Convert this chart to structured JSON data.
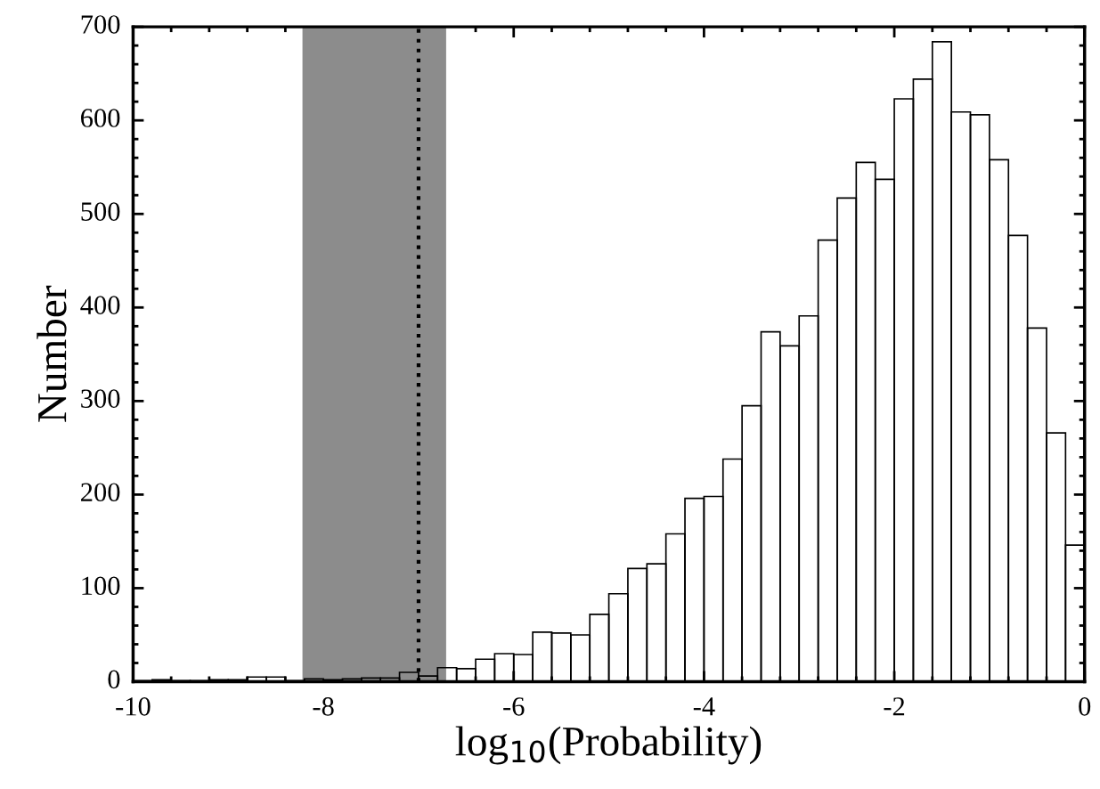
{
  "chart_data": {
    "type": "histogram",
    "xlabel": "log$_{10}$(Probability)",
    "ylabel": "Number",
    "bins": [
      -10,
      -9.8,
      -9.6,
      -9.4,
      -9.2,
      -9,
      -8.8,
      -8.6,
      -8.4,
      -8.2,
      -8,
      -7.8,
      -7.6,
      -7.4,
      -7.2,
      -7,
      -6.8,
      -6.6,
      -6.4,
      -6.2,
      -6,
      -5.8,
      -5.6,
      -5.4,
      -5.2,
      -5,
      -4.8,
      -4.6,
      -4.4,
      -4.2,
      -4,
      -3.8,
      -3.6,
      -3.4,
      -3.2,
      -3,
      -2.8,
      -2.6,
      -2.4,
      -2.2,
      -2,
      -1.8,
      -1.6,
      -1.4,
      -1.2,
      -1,
      -0.8,
      -0.6,
      -0.4,
      -0.2,
      0
    ],
    "values": [
      1,
      2,
      1,
      1,
      2,
      2,
      5,
      5,
      1,
      3,
      2,
      3,
      4,
      4,
      10,
      6,
      15,
      14,
      24,
      30,
      29,
      53,
      52,
      50,
      72,
      94,
      121,
      126,
      158,
      196,
      198,
      238,
      295,
      374,
      359,
      391,
      472,
      517,
      555,
      537,
      623,
      644,
      684,
      609,
      606,
      558,
      477,
      378,
      266,
      146
    ],
    "color": "#000000",
    "xlim": [
      -10,
      0
    ],
    "xticks": [
      -10,
      -8,
      -6,
      -4,
      -2,
      0
    ],
    "ylim": [
      0,
      700
    ],
    "yticks": [
      0,
      100,
      200,
      300,
      400,
      500,
      600,
      700
    ],
    "bands": [
      {
        "axis": "x",
        "from": -8.22,
        "to": -6.71,
        "color": "#8c8c8c"
      }
    ],
    "ref_lines": [
      {
        "axis": "x",
        "value": -7.0,
        "color": "#000000",
        "line_style": "dotted"
      }
    ],
    "grid": false
  }
}
